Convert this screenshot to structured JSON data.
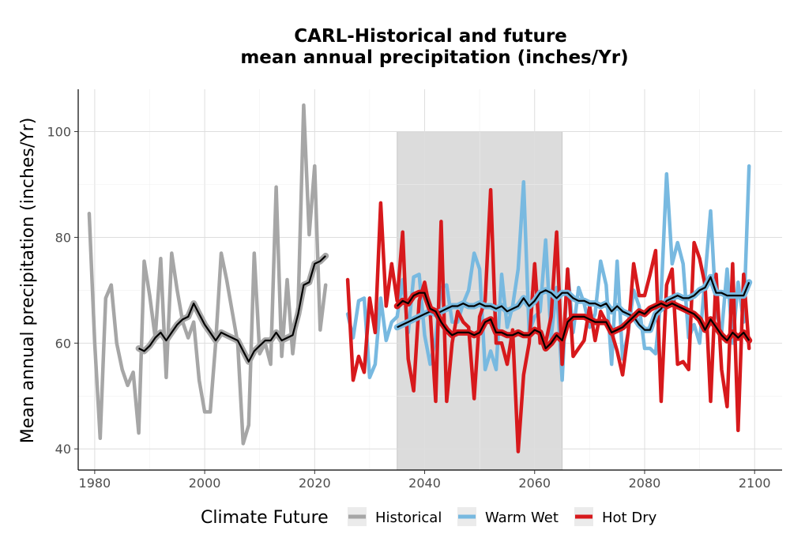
{
  "chart_data": {
    "type": "line",
    "title_lines": [
      "CARL-Historical and future",
      "mean annual precipitation (inches/Yr)"
    ],
    "xlabel": "",
    "ylabel": "Mean annual precipitation (inches/Yr)",
    "xlim": [
      1977,
      2105
    ],
    "ylim": [
      36,
      108
    ],
    "x_ticks": [
      1980,
      2000,
      2020,
      2040,
      2060,
      2080,
      2100
    ],
    "y_ticks": [
      40,
      60,
      80,
      100
    ],
    "grid": true,
    "legend": {
      "title": "Climate Future",
      "position": "bottom",
      "entries": [
        "Historical",
        "Warm Wet",
        "Hot Dry"
      ]
    },
    "shaded_region": {
      "x_start": 2035,
      "x_end": 2065,
      "y_start": 36,
      "y_end": 100,
      "color": "#dcdcdc"
    },
    "colors": {
      "Historical": "#a6a6a6",
      "Warm Wet": "#78b9e0",
      "Hot Dry": "#d7191c",
      "smooth": "#000000"
    },
    "series": [
      {
        "name": "Historical",
        "color": "#a6a6a6",
        "x": [
          1979,
          1980,
          1981,
          1982,
          1983,
          1984,
          1985,
          1986,
          1987,
          1988,
          1989,
          1990,
          1991,
          1992,
          1993,
          1994,
          1995,
          1996,
          1997,
          1998,
          1999,
          2000,
          2001,
          2002,
          2003,
          2004,
          2005,
          2006,
          2007,
          2008,
          2009,
          2010,
          2011,
          2012,
          2013,
          2014,
          2015,
          2016,
          2017,
          2018,
          2019,
          2020,
          2021,
          2022
        ],
        "y": [
          84.5,
          60,
          42,
          68.5,
          71,
          60,
          55,
          52,
          54.5,
          43,
          75.5,
          69,
          61,
          76,
          53.5,
          77,
          70,
          64,
          61,
          64,
          53,
          47,
          47,
          60,
          77,
          72,
          66,
          60,
          41,
          44.5,
          77,
          58,
          60,
          56,
          89.5,
          57.5,
          72,
          58,
          67,
          105,
          80.5,
          93.5,
          62.5,
          71
        ]
      },
      {
        "name": "Warm Wet",
        "color": "#78b9e0",
        "x": [
          2026,
          2027,
          2028,
          2029,
          2030,
          2031,
          2032,
          2033,
          2034,
          2035,
          2036,
          2037,
          2038,
          2039,
          2040,
          2041,
          2042,
          2043,
          2044,
          2045,
          2046,
          2047,
          2048,
          2049,
          2050,
          2051,
          2052,
          2053,
          2054,
          2055,
          2056,
          2057,
          2058,
          2059,
          2060,
          2061,
          2062,
          2063,
          2064,
          2065,
          2066,
          2067,
          2068,
          2069,
          2070,
          2071,
          2072,
          2073,
          2074,
          2075,
          2076,
          2077,
          2078,
          2079,
          2080,
          2081,
          2082,
          2083,
          2084,
          2085,
          2086,
          2087,
          2088,
          2089,
          2090,
          2091,
          2092,
          2093,
          2094,
          2095,
          2096,
          2097,
          2098,
          2099
        ],
        "y": [
          65.5,
          61,
          68,
          68.5,
          53.5,
          56,
          68.5,
          60.5,
          64,
          65,
          72,
          62,
          72.5,
          73,
          61.5,
          56,
          61,
          70.5,
          71,
          64,
          64,
          67.5,
          70,
          77,
          74,
          55,
          58.5,
          55,
          73,
          63,
          67,
          74,
          90.5,
          62,
          65,
          66,
          79.5,
          61,
          70.5,
          53,
          74,
          62,
          70.5,
          67.5,
          63,
          65.5,
          75.5,
          71,
          56,
          75.5,
          57,
          62,
          70,
          67,
          59,
          59,
          58,
          69,
          92,
          75,
          79,
          75,
          61,
          63.5,
          60,
          72.5,
          85,
          66,
          62,
          74,
          60,
          71.5,
          64,
          93.5
        ]
      },
      {
        "name": "Hot Dry",
        "color": "#d7191c",
        "x": [
          2026,
          2027,
          2028,
          2029,
          2030,
          2031,
          2032,
          2033,
          2034,
          2035,
          2036,
          2037,
          2038,
          2039,
          2040,
          2041,
          2042,
          2043,
          2044,
          2045,
          2046,
          2047,
          2048,
          2049,
          2050,
          2051,
          2052,
          2053,
          2054,
          2055,
          2056,
          2057,
          2058,
          2059,
          2060,
          2061,
          2062,
          2063,
          2064,
          2065,
          2066,
          2067,
          2068,
          2069,
          2070,
          2071,
          2072,
          2073,
          2074,
          2075,
          2076,
          2077,
          2078,
          2079,
          2080,
          2081,
          2082,
          2083,
          2084,
          2085,
          2086,
          2087,
          2088,
          2089,
          2090,
          2091,
          2092,
          2093,
          2094,
          2095,
          2096,
          2097,
          2098,
          2099
        ],
        "y": [
          72,
          53,
          57.5,
          54.5,
          68.5,
          62,
          86.5,
          67,
          75,
          68,
          81,
          57,
          51,
          68,
          71.5,
          66,
          49,
          83,
          49,
          60,
          66,
          64,
          63,
          49.5,
          65,
          68,
          89,
          60,
          60,
          56,
          62.5,
          39.5,
          54,
          60,
          75,
          60,
          60,
          65,
          81,
          56,
          74,
          57.5,
          59,
          60.5,
          67,
          60.5,
          66,
          64,
          62,
          58.5,
          54,
          62,
          75,
          69,
          69,
          73,
          77.5,
          49,
          71,
          74,
          56,
          56.5,
          55,
          79,
          76,
          71,
          49,
          73,
          55,
          48,
          75,
          43.5,
          73,
          59
        ]
      },
      {
        "name": "",
        "color": "#000000",
        "x": [
          1988,
          1989,
          1990,
          1991,
          1992,
          1993,
          1994,
          1995,
          1996,
          1997,
          1998,
          1999,
          2000,
          2001,
          2002,
          2003,
          2004,
          2005,
          2006,
          2007,
          2008,
          2009,
          2010,
          2011,
          2012,
          2013,
          2014,
          2015,
          2016,
          2017,
          2018,
          2019,
          2020,
          2021,
          2022
        ],
        "y": [
          59,
          58.5,
          59.5,
          61,
          62,
          60.5,
          62,
          63.5,
          64.5,
          65,
          67.5,
          65.5,
          63.5,
          62,
          60.5,
          62,
          61.5,
          61,
          60.5,
          58.5,
          56.5,
          58.5,
          59.5,
          60.5,
          60.5,
          62,
          60.5,
          61,
          61.5,
          65.5,
          71,
          71.5,
          75,
          75.5,
          76.5
        ]
      },
      {
        "name": "",
        "color": "#000000",
        "x": [
          2035,
          2036,
          2037,
          2038,
          2039,
          2040,
          2041,
          2042,
          2043,
          2044,
          2045,
          2046,
          2047,
          2048,
          2049,
          2050,
          2051,
          2052,
          2053,
          2054,
          2055,
          2056,
          2057,
          2058,
          2059,
          2060,
          2061,
          2062,
          2063,
          2064,
          2065,
          2066,
          2067,
          2068,
          2069,
          2070,
          2071,
          2072,
          2073,
          2074,
          2075,
          2076,
          2077,
          2078,
          2079,
          2080,
          2081,
          2082,
          2083,
          2084,
          2085,
          2086,
          2087,
          2088,
          2089,
          2090,
          2091,
          2092,
          2093,
          2094,
          2095,
          2096,
          2097,
          2098,
          2099
        ],
        "y": [
          63,
          63.5,
          64,
          64.5,
          65,
          65.5,
          66,
          65.5,
          66,
          66.5,
          67,
          67,
          67.5,
          67,
          67,
          67.5,
          67,
          67,
          66.5,
          67,
          66,
          66.5,
          67,
          68.5,
          67,
          68,
          69.5,
          70,
          69.5,
          68.5,
          69.5,
          69.5,
          68.5,
          68,
          68,
          67.5,
          67.5,
          67,
          67.5,
          66,
          67,
          66,
          65.5,
          65,
          63.5,
          62.5,
          62.5,
          65.5,
          66.5,
          68,
          68.5,
          69,
          68.5,
          68.5,
          69,
          70,
          70.5,
          72.5,
          69.5,
          69.5,
          69,
          69,
          69,
          69,
          71.5
        ]
      },
      {
        "name": "",
        "color": "#000000",
        "x": [
          2035,
          2036,
          2037,
          2038,
          2039,
          2040,
          2041,
          2042,
          2043,
          2044,
          2045,
          2046,
          2047,
          2048,
          2049,
          2050,
          2051,
          2052,
          2053,
          2054,
          2055,
          2056,
          2057,
          2058,
          2059,
          2060,
          2061,
          2062,
          2063,
          2064,
          2065,
          2066,
          2067,
          2068,
          2069,
          2070,
          2071,
          2072,
          2073,
          2074,
          2075,
          2076,
          2077,
          2078,
          2079,
          2080,
          2081,
          2082,
          2083,
          2084,
          2085,
          2086,
          2087,
          2088,
          2089,
          2090,
          2091,
          2092,
          2093,
          2094,
          2095,
          2096,
          2097,
          2098,
          2099
        ],
        "y": [
          67,
          68,
          67.5,
          69,
          69.5,
          69.5,
          66.5,
          66,
          64,
          62.5,
          61.5,
          62,
          62,
          62,
          61.5,
          62,
          64,
          64.5,
          62,
          62,
          61.5,
          61.5,
          62,
          61.5,
          61.5,
          62.5,
          62,
          59,
          60,
          61.5,
          60.5,
          64,
          65,
          65,
          65,
          64.5,
          64,
          64,
          64,
          62,
          62.5,
          63,
          64,
          65,
          66,
          65.5,
          66.5,
          67,
          67.5,
          67,
          67.5,
          67,
          66.5,
          66,
          65.5,
          64.5,
          62.5,
          64.5,
          63,
          61.5,
          60.5,
          62,
          61,
          62,
          60.5
        ]
      }
    ]
  }
}
